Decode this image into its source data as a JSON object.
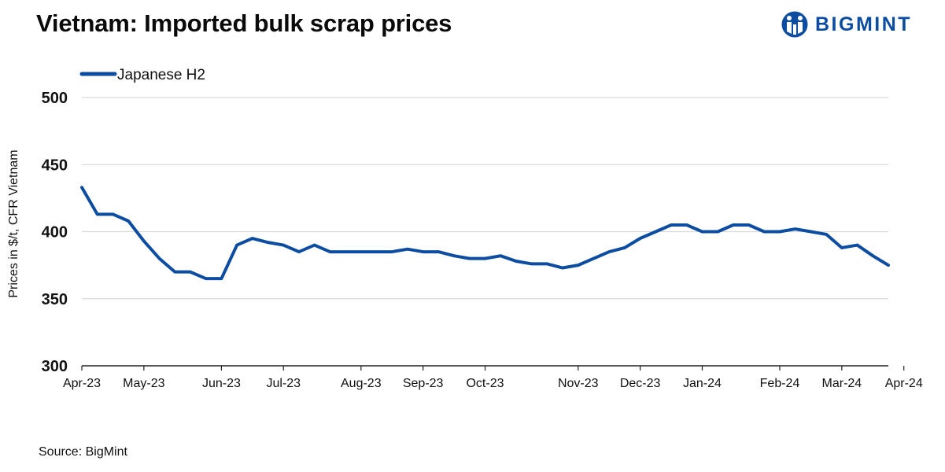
{
  "header": {
    "title": "Vietnam: Imported bulk scrap prices",
    "brand": "BIGMINT",
    "brand_logo_icon": "bigmint-logo-icon"
  },
  "footer": {
    "source": "Source: BigMint"
  },
  "colors": {
    "series": "#0c4da2",
    "grid": "#d9d9d9",
    "axis": "#222222"
  },
  "chart_data": {
    "type": "line",
    "ylabel": "Prices in $/t, CFR Vietnam",
    "ylim": [
      300,
      500
    ],
    "yticks": [
      300,
      350,
      400,
      450,
      500
    ],
    "grid": true,
    "legend_position": "top-left",
    "x_tick_labels": [
      "Apr-23",
      "May-23",
      "Jun-23",
      "Jul-23",
      "Aug-23",
      "Sep-23",
      "Oct-23",
      "Nov-23",
      "Dec-23",
      "Jan-24",
      "Feb-24",
      "Mar-24",
      "Apr-24"
    ],
    "x_tick_index": [
      0,
      4,
      9,
      13,
      18,
      22,
      26,
      32,
      36,
      40,
      45,
      49,
      53
    ],
    "series": [
      {
        "name": "Japanese H2",
        "values": [
          433,
          413,
          413,
          408,
          393,
          380,
          370,
          370,
          365,
          365,
          390,
          395,
          392,
          390,
          385,
          390,
          385,
          385,
          385,
          385,
          385,
          387,
          385,
          385,
          382,
          380,
          380,
          382,
          378,
          376,
          376,
          373,
          375,
          380,
          385,
          388,
          395,
          400,
          405,
          405,
          400,
          400,
          405,
          405,
          400,
          400,
          402,
          400,
          398,
          388,
          390,
          382,
          375
        ]
      }
    ]
  }
}
